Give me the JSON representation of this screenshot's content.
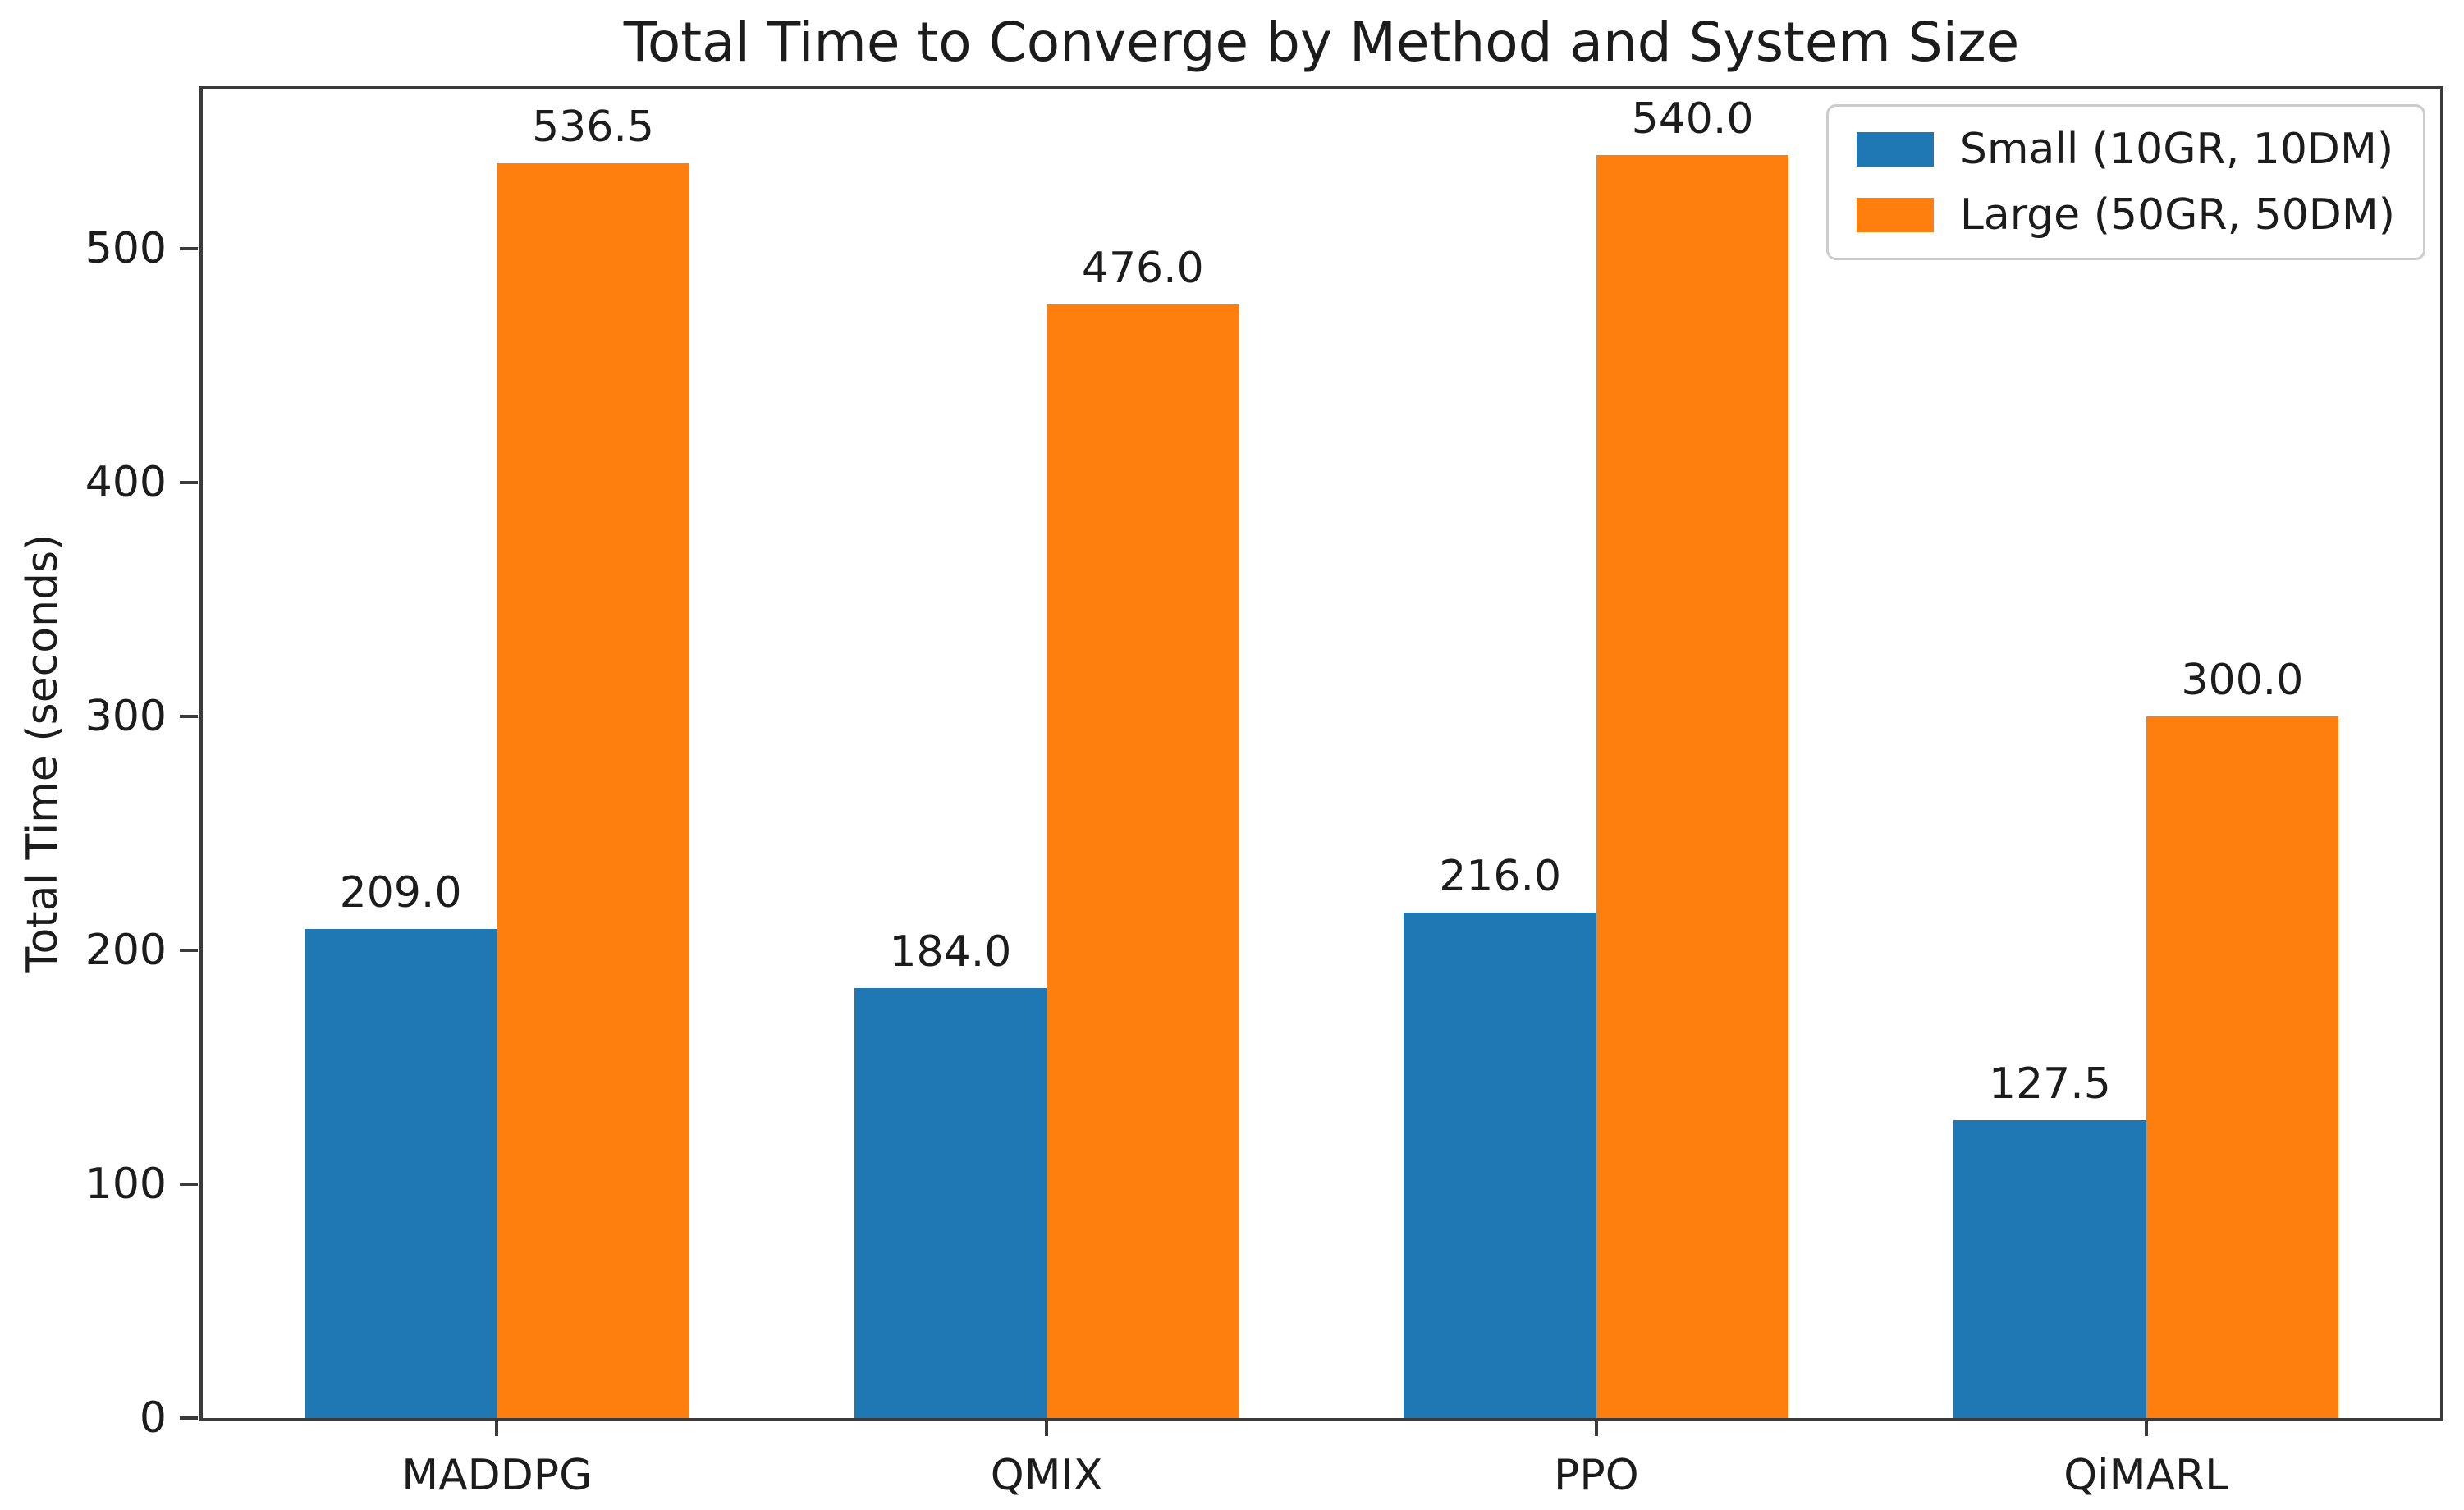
{
  "chart_data": {
    "type": "bar",
    "title": "Total Time to Converge by Method and System Size",
    "xlabel": "",
    "ylabel": "Total Time (seconds)",
    "categories": [
      "MADDPG",
      "QMIX",
      "PPO",
      "QiMARL"
    ],
    "series": [
      {
        "name": "Small (10GR, 10DM)",
        "color": "#1f77b4",
        "values": [
          209.0,
          184.0,
          216.0,
          127.5
        ]
      },
      {
        "name": "Large (50GR, 50DM)",
        "color": "#ff7f0e",
        "values": [
          536.5,
          476.0,
          540.0,
          300.0
        ]
      }
    ],
    "bar_labels": [
      [
        "209.0",
        "184.0",
        "216.0",
        "127.5"
      ],
      [
        "536.5",
        "476.0",
        "540.0",
        "300.0"
      ]
    ],
    "y_ticks": [
      "0",
      "100",
      "200",
      "300",
      "400",
      "500"
    ],
    "ylim": [
      0,
      568
    ],
    "bar_width_units": 0.35,
    "x_margin_units": 0.535,
    "grid": false,
    "legend_position": "upper right"
  }
}
